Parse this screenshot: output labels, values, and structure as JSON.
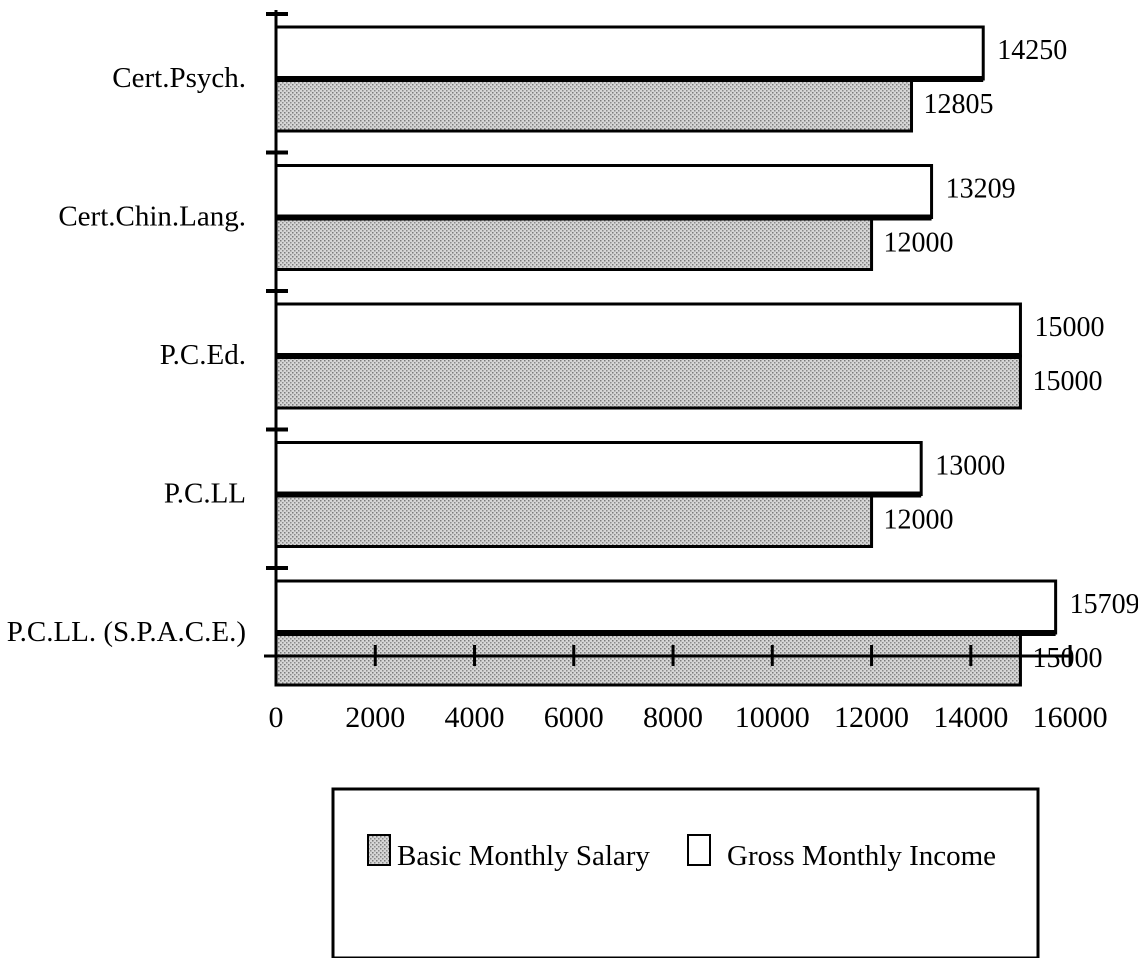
{
  "chart_data": {
    "type": "bar",
    "orientation": "horizontal",
    "title": "",
    "xlabel": "",
    "ylabel": "",
    "categories": [
      "Cert.Psych.",
      "Cert.Chin.Lang.",
      "P.C.Ed.",
      "P.C.LL",
      "P.C.LL. (S.P.A.C.E.)"
    ],
    "series": [
      {
        "name": "Gross Monthly Income",
        "values": [
          14250,
          13209,
          15000,
          13000,
          15709
        ],
        "color": "#ffffff",
        "pattern": "none"
      },
      {
        "name": "Basic Monthly Salary",
        "values": [
          12805,
          12000,
          15000,
          12000,
          15000
        ],
        "color": "#c9c9c9",
        "pattern": "dotted-gray"
      }
    ],
    "data_labels": {
      "gross": [
        "14250",
        "13209",
        "15000",
        "13000",
        "15709"
      ],
      "basic": [
        "12805",
        "12000",
        "15000",
        "12000",
        "15000"
      ]
    },
    "xlim": [
      0,
      16000
    ],
    "x_ticks": [
      0,
      2000,
      4000,
      6000,
      8000,
      10000,
      12000,
      14000,
      16000
    ],
    "x_tick_labels": [
      "0",
      "2000",
      "4000",
      "6000",
      "8000",
      "10000",
      "12000",
      "14000",
      "16000"
    ],
    "grid": false,
    "legend": {
      "placement": "bottom",
      "entries": [
        "Basic Monthly Salary",
        "Gross Monthly Income"
      ]
    }
  }
}
